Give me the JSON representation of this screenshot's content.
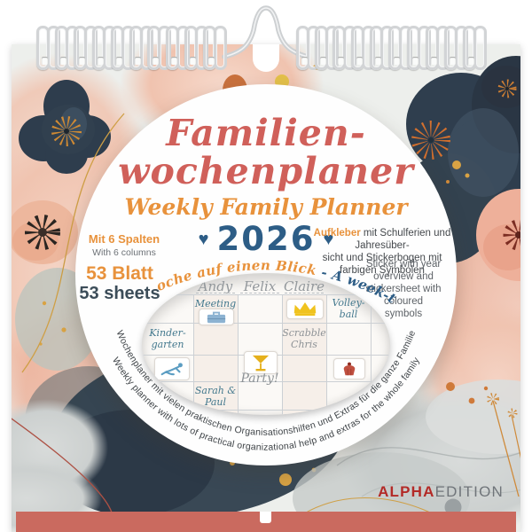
{
  "product": {
    "title_line1": "Familien-",
    "title_line2": "wochenplaner",
    "subtitle": "Weekly Family Planner",
    "heart": "♥",
    "year": "2026"
  },
  "features": {
    "columns_de": "Mit 6 Spalten",
    "columns_en": "With 6 columns",
    "sheets_de": "53 Blatt",
    "sheets_en": "53 sheets",
    "stickers_de_highlight": "Aufkleber",
    "stickers_de_line1_rest": " mit Schulferien und Jahresüber-",
    "stickers_de_line2": "sicht und Stickerbogen mit farbigen Symbolen",
    "stickers_en_line1": "Sticker with year overview and",
    "stickers_en_line2": "stickersheet with coloured",
    "stickers_en_line3": "symbols",
    "week_view_de": "Eine Woche auf einen Blick",
    "week_view_en": " - A week-to-view"
  },
  "planner_sample": {
    "names": [
      "Andy",
      "Felix",
      "Claire"
    ],
    "entries": {
      "meeting": "Meeting",
      "kindergarten_line1": "Kinder-",
      "kindergarten_line2": "garten",
      "volleyball_line1": "Volley-",
      "volleyball_line2": "ball",
      "scrabble_line1": "Scrabble",
      "scrabble_line2": "Chris",
      "party": "Party!",
      "sarah_line1": "Sarah &",
      "sarah_line2": "Paul"
    },
    "sticker_icons": [
      "briefcase",
      "crown",
      "gymnast",
      "cocktail",
      "cupcake"
    ]
  },
  "taglines": {
    "de": "Wochenplaner mit vielen praktischen Organisationshilfen und Extras für die ganze Familie",
    "en": "Weekly planner with lots of practical organizational help and extras for the whole family"
  },
  "brand": {
    "bold": "ALPHA",
    "light": "EDITION"
  },
  "colors": {
    "title_coral": "#d0605a",
    "accent_orange": "#e8923c",
    "year_blue": "#2d5d86",
    "teal_script": "#44798e",
    "gray_script": "#8d9296",
    "bottom_bar": "#ca6a5f",
    "brand_red": "#b32a27",
    "crown_gold": "#f0c31f",
    "cupcake_red": "#c05040",
    "briefcase_blue": "#8db3d2"
  }
}
